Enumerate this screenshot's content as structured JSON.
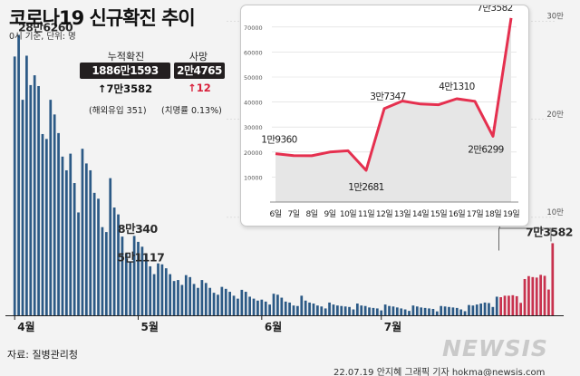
{
  "header": {
    "title": "코로나19 신규확진 추이",
    "subtitle": "0시 기준, 단위: 명"
  },
  "stats": {
    "cumulative_label": "누적확진",
    "cumulative_value": "1886만1593",
    "cumulative_change": "↑7만3582",
    "overseas_note": "(해외유입 351)",
    "deaths_label": "사망",
    "deaths_value": "2만4765",
    "deaths_change": "↑12",
    "fatality_note": "(치명률 0.13%)"
  },
  "footer": {
    "source": "자료: 질병관리청",
    "credit": "22.07.19 안지혜 그래픽 기자  hokma@newsis.com",
    "logo": "NEWSIS"
  },
  "colors": {
    "bar_main": "#2c5a86",
    "bar_recent": "#c8324e",
    "line": "#e5304f",
    "area": "#e6e6e6",
    "text_dark": "#111111",
    "accent_up_red": "#d81f3a"
  },
  "chart_data": [
    {
      "type": "bar",
      "x_tick_labels": [
        "4월",
        "5월",
        "6월",
        "7월"
      ],
      "y_tick_labels": [
        "10만",
        "20만",
        "30만"
      ],
      "ylim": [
        0,
        320000
      ],
      "grid": true,
      "annotations": [
        {
          "text": "28만6260",
          "value": 286260
        },
        {
          "text": "8만340",
          "value": 80340
        },
        {
          "text": "5만1117",
          "value": 51117
        },
        {
          "text": "7만3582",
          "value": 73582
        }
      ],
      "series": [
        {
          "values": [
            264171,
            286260,
            220000,
            265000,
            235000,
            245000,
            234000,
            185000,
            180000,
            220000,
            205000,
            186000,
            162000,
            148000,
            165000,
            135000,
            105000,
            170000,
            155000,
            148000,
            125000,
            119000,
            90000,
            85000,
            140000,
            110000,
            103000,
            80340,
            63000,
            55000,
            81000,
            75000,
            70000,
            63000,
            50000,
            42000,
            53000,
            52000,
            48000,
            42000,
            35000,
            36000,
            31000,
            41000,
            39000,
            32000,
            28000,
            36000,
            33000,
            28000,
            23000,
            21000,
            29000,
            27000,
            24000,
            20000,
            17000,
            26000,
            24000,
            19000,
            17000,
            15000,
            16000,
            14000,
            11000,
            22000,
            21000,
            18000,
            14000,
            13000,
            10000,
            9500,
            20000,
            15000,
            13000,
            12000,
            10000,
            9000,
            7000,
            13000,
            11000,
            10000,
            9500,
            9000,
            8500,
            6000,
            12000,
            10000,
            9500,
            8000,
            7500,
            7000,
            5000,
            11000,
            9500,
            9000,
            8000,
            7000,
            6000,
            4500,
            10000,
            9000,
            8000,
            7500,
            7000,
            6500,
            4000,
            9500,
            9000,
            8500,
            8000,
            7500,
            6000,
            4200,
            10500,
            10000,
            11000,
            12000,
            13000,
            12500,
            8500,
            19000,
            18500,
            20000,
            20000,
            20500,
            19500,
            12700,
            37000,
            40000,
            39000,
            38500,
            41300,
            40300,
            26300,
            73582
          ],
          "recent_start_index": 122
        }
      ]
    },
    {
      "type": "area",
      "categories": [
        "6일",
        "7일",
        "8일",
        "9일",
        "10일",
        "11일",
        "12일",
        "13일",
        "14일",
        "15일",
        "16일",
        "17일",
        "18일",
        "19일"
      ],
      "y_tick_labels": [
        "10000",
        "20000",
        "30000",
        "40000",
        "50000",
        "60000",
        "70000"
      ],
      "ylim": [
        0,
        75000
      ],
      "grid": true,
      "values": [
        19360,
        18600,
        18500,
        20000,
        20500,
        12681,
        37347,
        40400,
        39200,
        38900,
        41310,
        40300,
        26299,
        73582
      ],
      "data_labels": [
        "1만9360",
        "",
        "",
        "",
        "",
        "1만2681",
        "3만7347",
        "",
        "",
        "",
        "4만1310",
        "",
        "2만6299",
        "7만3582"
      ]
    }
  ]
}
